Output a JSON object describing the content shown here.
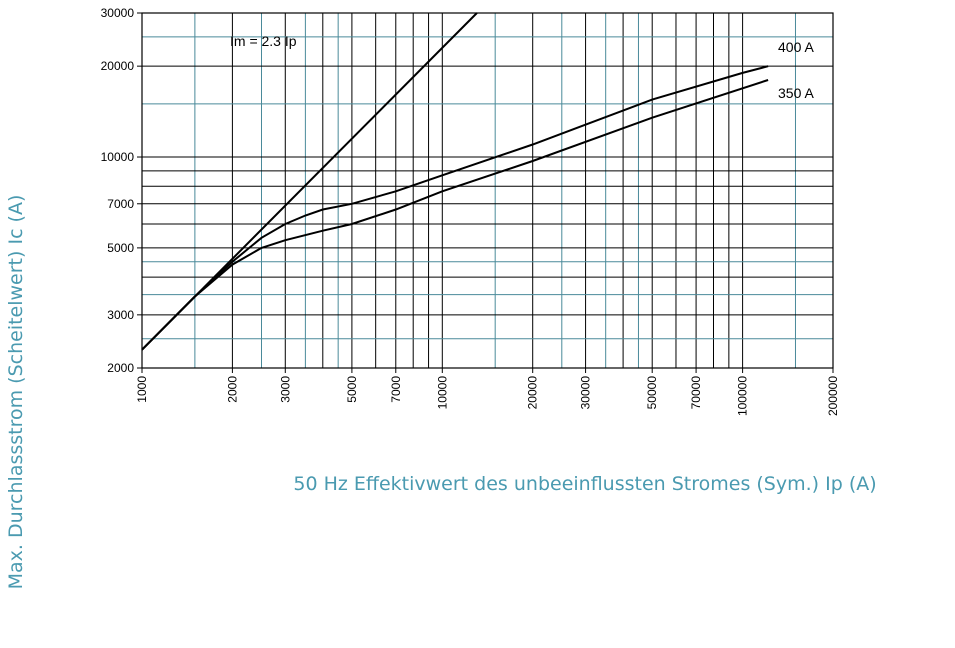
{
  "chart_data": {
    "type": "line",
    "x_label": "50 Hz Effektivwert des unbeeinflussten Stromes (Sym.) Ip (A)",
    "y_label": "Max. Durchlassstrom (Scheitelwert) Ic (A)",
    "xscale": "log",
    "yscale": "log",
    "xlim": [
      1000,
      200000
    ],
    "ylim": [
      2000,
      30000
    ],
    "xticks": [
      1000,
      2000,
      3000,
      5000,
      7000,
      10000,
      20000,
      30000,
      50000,
      70000,
      100000,
      200000
    ],
    "yticks": [
      2000,
      3000,
      5000,
      7000,
      10000,
      20000,
      30000
    ],
    "grid": true,
    "grid_color": "#000000",
    "minor_grid_color": "#4a8a9a",
    "xgrid_major": [
      2000,
      3000,
      4000,
      5000,
      6000,
      7000,
      8000,
      9000,
      10000,
      20000,
      30000,
      40000,
      50000,
      60000,
      70000,
      80000,
      90000,
      100000
    ],
    "xgrid_minor": [
      1500,
      2500,
      3500,
      4500,
      15000,
      25000,
      35000,
      45000,
      150000
    ],
    "ygrid_major": [
      3000,
      4000,
      5000,
      6000,
      7000,
      8000,
      9000,
      10000,
      20000
    ],
    "ygrid_minor": [
      2500,
      3500,
      4500,
      15000,
      25000
    ],
    "series": [
      {
        "name": "Im = 2.3 Ip",
        "color": "#000000",
        "x": [
          1000,
          13043
        ],
        "values": [
          2300,
          30000
        ]
      },
      {
        "name": "400 A",
        "color": "#000000",
        "x": [
          1000,
          1500,
          2000,
          2500,
          3000,
          3500,
          4000,
          5000,
          7000,
          10000,
          20000,
          50000,
          100000,
          121600
        ],
        "values": [
          2300,
          3450,
          4500,
          5400,
          6000,
          6400,
          6700,
          7000,
          7700,
          8700,
          11000,
          15500,
          19000,
          20000
        ]
      },
      {
        "name": "350 A",
        "color": "#000000",
        "x": [
          1000,
          1500,
          2000,
          2500,
          3000,
          4000,
          5000,
          7000,
          10000,
          20000,
          50000,
          121600
        ],
        "values": [
          2300,
          3450,
          4400,
          5000,
          5300,
          5700,
          6000,
          6700,
          7700,
          9700,
          13500,
          18000
        ]
      }
    ]
  }
}
